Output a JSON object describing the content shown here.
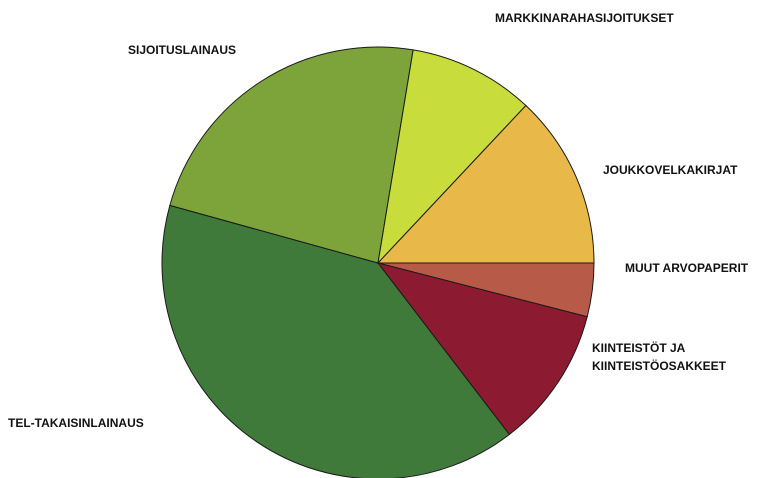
{
  "chart_data": {
    "type": "pie",
    "categories": [
      "MUUT ARVOPAPERIT",
      "KIINTEISTÖT JA\nKIINTEISTÖOSAKKEET",
      "TEL-TAKAISINLAINAUS",
      "SIJOITUSLAINAUS",
      "MARKKINARAHASIJOITUKSET",
      "JOUKKOVELKAKIRJAT"
    ],
    "values": [
      4.0,
      10.6,
      39.7,
      23.3,
      9.4,
      13.0
    ],
    "colors": [
      "#b85a48",
      "#8c1a30",
      "#3f7a3a",
      "#7da43a",
      "#c8dc3c",
      "#e8b848"
    ]
  }
}
